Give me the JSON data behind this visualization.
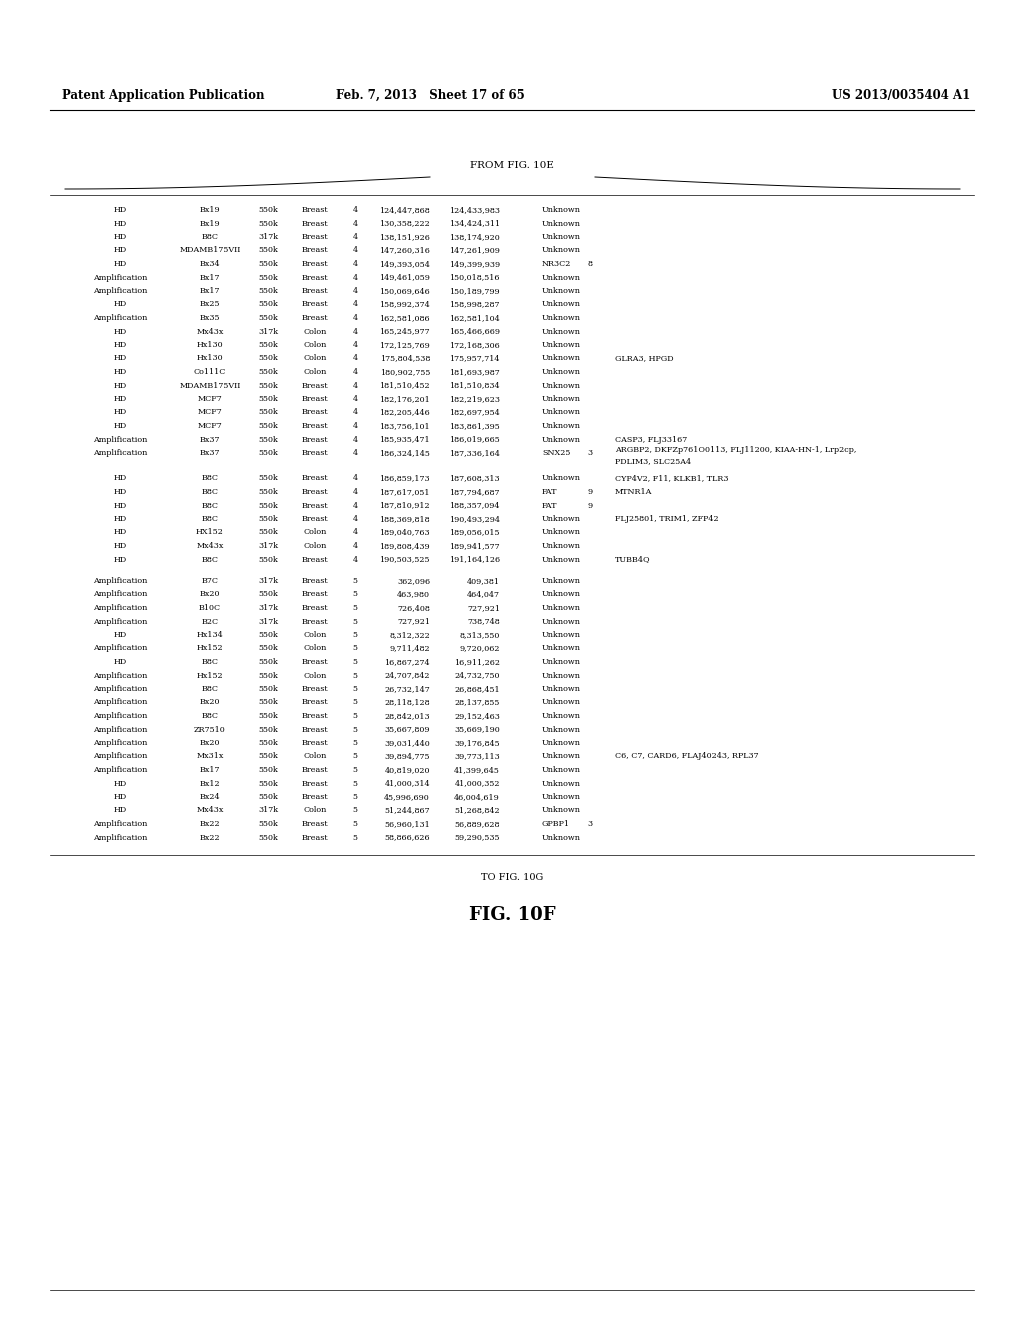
{
  "header_left": "Patent Application Publication",
  "header_center": "Feb. 7, 2013   Sheet 17 of 65",
  "header_right": "US 2013/0035404 A1",
  "from_label": "FROM FIG. 10E",
  "to_label": "TO FIG. 10G",
  "fig_label": "FIG. 10F",
  "rows": [
    [
      "HD",
      "Bx19",
      "550k",
      "Breast",
      "4",
      "124,447,868",
      "124,433,983",
      "Unknown",
      "",
      ""
    ],
    [
      "HD",
      "Bx19",
      "550k",
      "Breast",
      "4",
      "130,358,222",
      "134,424,311",
      "Unknown",
      "",
      ""
    ],
    [
      "HD",
      "B8C",
      "317k",
      "Breast",
      "4",
      "138,151,926",
      "138,174,920",
      "Unknown",
      "",
      ""
    ],
    [
      "HD",
      "MDAMB175VII",
      "550k",
      "Breast",
      "4",
      "147,260,316",
      "147,261,909",
      "Unknown",
      "",
      ""
    ],
    [
      "HD",
      "Bx34",
      "550k",
      "Breast",
      "4",
      "149,393,054",
      "149,399,939",
      "NR3C2",
      "8",
      ""
    ],
    [
      "Amplification",
      "Bx17",
      "550k",
      "Breast",
      "4",
      "149,461,059",
      "150,018,516",
      "Unknown",
      "",
      ""
    ],
    [
      "Amplification",
      "Bx17",
      "550k",
      "Breast",
      "4",
      "150,069,646",
      "150,189,799",
      "Unknown",
      "",
      ""
    ],
    [
      "HD",
      "Bx25",
      "550k",
      "Breast",
      "4",
      "158,992,374",
      "158,998,287",
      "Unknown",
      "",
      ""
    ],
    [
      "Amplification",
      "Bx35",
      "550k",
      "Breast",
      "4",
      "162,581,086",
      "162,581,104",
      "Unknown",
      "",
      ""
    ],
    [
      "HD",
      "Mx43x",
      "317k",
      "Colon",
      "4",
      "165,245,977",
      "165,466,669",
      "Unknown",
      "",
      ""
    ],
    [
      "HD",
      "Hx130",
      "550k",
      "Colon",
      "4",
      "172,125,769",
      "172,168,306",
      "Unknown",
      "",
      ""
    ],
    [
      "HD",
      "Hx130",
      "550k",
      "Colon",
      "4",
      "175,804,538",
      "175,957,714",
      "Unknown",
      "",
      "GLRA3, HPGD"
    ],
    [
      "HD",
      "Co111C",
      "550k",
      "Colon",
      "4",
      "180,902,755",
      "181,693,987",
      "Unknown",
      "",
      ""
    ],
    [
      "HD",
      "MDAMB175VII",
      "550k",
      "Breast",
      "4",
      "181,510,452",
      "181,510,834",
      "Unknown",
      "",
      ""
    ],
    [
      "HD",
      "MCF7",
      "550k",
      "Breast",
      "4",
      "182,176,201",
      "182,219,623",
      "Unknown",
      "",
      ""
    ],
    [
      "HD",
      "MCF7",
      "550k",
      "Breast",
      "4",
      "182,205,446",
      "182,697,954",
      "Unknown",
      "",
      ""
    ],
    [
      "HD",
      "MCF7",
      "550k",
      "Breast",
      "4",
      "183,756,101",
      "183,861,395",
      "Unknown",
      "",
      ""
    ],
    [
      "Amplification",
      "Bx37",
      "550k",
      "Breast",
      "4",
      "185,935,471",
      "186,019,665",
      "Unknown",
      "",
      "CASP3, FLJ33167"
    ],
    [
      "Amplification",
      "Bx37",
      "550k",
      "Breast",
      "4",
      "186,324,145",
      "187,336,164",
      "SNX25",
      "3",
      "ARGBP2, DKFZp761O0113, FLJ11200, KIAA-HN-1, Lrp2cp,\nPDLIM3, SLC25A4"
    ],
    [
      "HD",
      "B8C",
      "550k",
      "Breast",
      "4",
      "186,859,173",
      "187,608,313",
      "Unknown",
      "",
      "CYP4V2, F11, KLKB1, TLR3"
    ],
    [
      "HD",
      "B8C",
      "550k",
      "Breast",
      "4",
      "187,617,051",
      "187,794,687",
      "FAT",
      "9",
      "MTNR1A"
    ],
    [
      "HD",
      "B8C",
      "550k",
      "Breast",
      "4",
      "187,810,912",
      "188,357,094",
      "FAT",
      "9",
      ""
    ],
    [
      "HD",
      "B8C",
      "550k",
      "Breast",
      "4",
      "188,369,818",
      "190,493,294",
      "Unknown",
      "",
      "FLJ25801, TRIM1, ZFP42"
    ],
    [
      "HD",
      "HX152",
      "550k",
      "Colon",
      "4",
      "189,040,763",
      "189,056,015",
      "Unknown",
      "",
      ""
    ],
    [
      "HD",
      "Mx43x",
      "317k",
      "Colon",
      "4",
      "189,808,439",
      "189,941,577",
      "Unknown",
      "",
      ""
    ],
    [
      "HD",
      "B8C",
      "550k",
      "Breast",
      "4",
      "190,503,525",
      "191,164,126",
      "Unknown",
      "",
      "TUBB4Q"
    ],
    [
      "Amplification",
      "B7C",
      "317k",
      "Breast",
      "5",
      "362,096",
      "409,381",
      "Unknown",
      "",
      ""
    ],
    [
      "Amplification",
      "Bx20",
      "550k",
      "Breast",
      "5",
      "463,980",
      "464,047",
      "Unknown",
      "",
      ""
    ],
    [
      "Amplification",
      "B10C",
      "317k",
      "Breast",
      "5",
      "726,408",
      "727,921",
      "Unknown",
      "",
      ""
    ],
    [
      "Amplification",
      "B2C",
      "317k",
      "Breast",
      "5",
      "727,921",
      "738,748",
      "Unknown",
      "",
      ""
    ],
    [
      "HD",
      "Hx134",
      "550k",
      "Colon",
      "5",
      "8,312,322",
      "8,313,550",
      "Unknown",
      "",
      ""
    ],
    [
      "Amplification",
      "Hx152",
      "550k",
      "Colon",
      "5",
      "9,711,482",
      "9,720,062",
      "Unknown",
      "",
      ""
    ],
    [
      "HD",
      "B8C",
      "550k",
      "Breast",
      "5",
      "16,867,274",
      "16,911,262",
      "Unknown",
      "",
      ""
    ],
    [
      "Amplification",
      "Hx152",
      "550k",
      "Colon",
      "5",
      "24,707,842",
      "24,732,750",
      "Unknown",
      "",
      ""
    ],
    [
      "Amplification",
      "B8C",
      "550k",
      "Breast",
      "5",
      "26,732,147",
      "26,868,451",
      "Unknown",
      "",
      ""
    ],
    [
      "Amplification",
      "Bx20",
      "550k",
      "Breast",
      "5",
      "28,118,128",
      "28,137,855",
      "Unknown",
      "",
      ""
    ],
    [
      "Amplification",
      "B8C",
      "550k",
      "Breast",
      "5",
      "28,842,013",
      "29,152,463",
      "Unknown",
      "",
      ""
    ],
    [
      "Amplification",
      "ZR7510",
      "550k",
      "Breast",
      "5",
      "35,667,809",
      "35,669,190",
      "Unknown",
      "",
      ""
    ],
    [
      "Amplification",
      "Bx20",
      "550k",
      "Breast",
      "5",
      "39,031,440",
      "39,176,845",
      "Unknown",
      "",
      ""
    ],
    [
      "Amplification",
      "Mx31x",
      "550k",
      "Colon",
      "5",
      "39,894,775",
      "39,773,113",
      "Unknown",
      "",
      "C6, C7, CARD6, FLAJ40243, RPL37"
    ],
    [
      "Amplification",
      "Bx17",
      "550k",
      "Breast",
      "5",
      "40,819,020",
      "41,399,645",
      "Unknown",
      "",
      ""
    ],
    [
      "HD",
      "Bx12",
      "550k",
      "Breast",
      "5",
      "41,000,314",
      "41,000,352",
      "Unknown",
      "",
      ""
    ],
    [
      "HD",
      "Bx24",
      "550k",
      "Breast",
      "5",
      "45,996,690",
      "46,004,619",
      "Unknown",
      "",
      ""
    ],
    [
      "HD",
      "Mx43x",
      "317k",
      "Colon",
      "5",
      "51,244,867",
      "51,268,842",
      "Unknown",
      "",
      ""
    ],
    [
      "Amplification",
      "Bx22",
      "550k",
      "Breast",
      "5",
      "56,960,131",
      "56,889,628",
      "GPBP1",
      "3",
      ""
    ],
    [
      "Amplification",
      "Bx22",
      "550k",
      "Breast",
      "5",
      "58,866,626",
      "59,290,535",
      "Unknown",
      "",
      ""
    ]
  ],
  "bg_color": "#ffffff",
  "text_color": "#000000",
  "font_size": 5.8,
  "header_font_size": 8.5,
  "fig_label_font_size": 13
}
